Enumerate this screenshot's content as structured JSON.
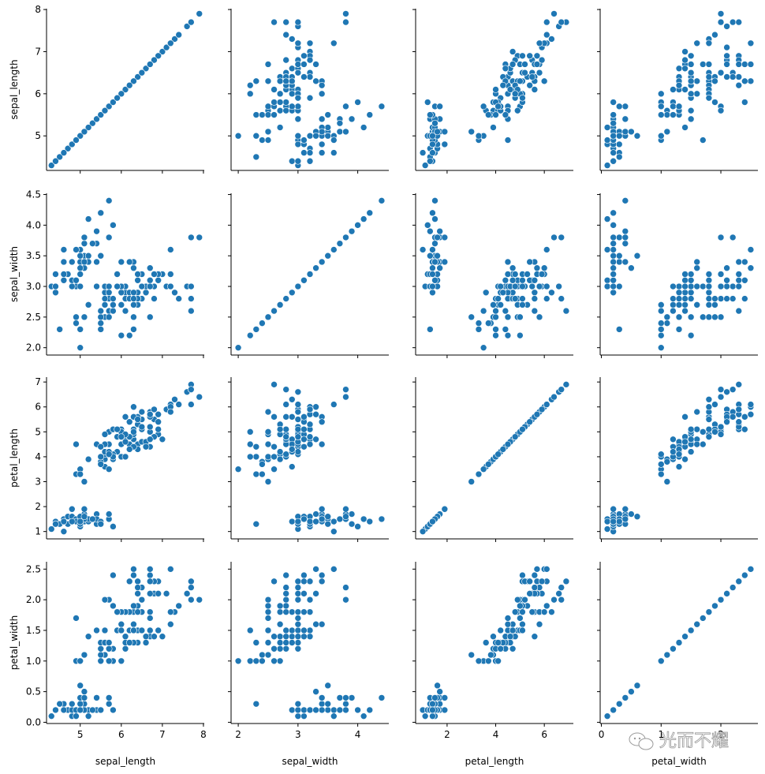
{
  "colors": {
    "marker": "#1f77b4",
    "axis": "#000000",
    "background": "#ffffff"
  },
  "watermark": {
    "text": "光而不耀",
    "icon": "wechat-icon"
  },
  "variables": [
    {
      "name": "sepal_length",
      "label": "sepal_length",
      "lim": [
        4.18,
        8.02
      ],
      "ticks": [
        5,
        6,
        7,
        8
      ],
      "tick_labels": [
        "5",
        "6",
        "7",
        "8"
      ]
    },
    {
      "name": "sepal_width",
      "label": "sepal_width",
      "lim": [
        1.88,
        4.52
      ],
      "ticks": [
        2.0,
        2.5,
        3.0,
        3.5,
        4.0,
        4.5
      ],
      "tick_labels": [
        "2.0",
        "2.5",
        "3.0",
        "3.5",
        "4.0",
        "4.5"
      ]
    },
    {
      "name": "petal_length",
      "label": "petal_length",
      "lim": [
        0.705,
        7.195
      ],
      "ticks": [
        1,
        2,
        3,
        4,
        5,
        6,
        7
      ],
      "tick_labels": [
        "1",
        "2",
        "3",
        "4",
        "5",
        "6",
        "7"
      ]
    },
    {
      "name": "petal_width",
      "label": "petal_width",
      "lim": [
        -0.02,
        2.62
      ],
      "ticks": [
        0.0,
        0.5,
        1.0,
        1.5,
        2.0,
        2.5
      ],
      "tick_labels": [
        "0.0",
        "0.5",
        "1.0",
        "1.5",
        "2.0",
        "2.5"
      ]
    }
  ],
  "x_tick_overrides": {
    "sepal_width": {
      "ticks": [
        2,
        3,
        4
      ],
      "tick_labels": [
        "2",
        "3",
        "4"
      ]
    },
    "petal_length": {
      "ticks": [
        2,
        4,
        6
      ],
      "tick_labels": [
        "2",
        "4",
        "6"
      ]
    },
    "petal_width": {
      "ticks": [
        0,
        1,
        2
      ],
      "tick_labels": [
        "0",
        "1",
        "2"
      ]
    }
  },
  "chart_data": {
    "type": "scatter",
    "title": "",
    "layout": "pairplot",
    "grid": false,
    "columns": [
      "sepal_length",
      "sepal_width",
      "petal_length",
      "petal_width"
    ],
    "rows": [
      [
        5.1,
        3.5,
        1.4,
        0.2
      ],
      [
        4.9,
        3.0,
        1.4,
        0.2
      ],
      [
        4.7,
        3.2,
        1.3,
        0.2
      ],
      [
        4.6,
        3.1,
        1.5,
        0.2
      ],
      [
        5.0,
        3.6,
        1.4,
        0.2
      ],
      [
        5.4,
        3.9,
        1.7,
        0.4
      ],
      [
        4.6,
        3.4,
        1.4,
        0.3
      ],
      [
        5.0,
        3.4,
        1.5,
        0.2
      ],
      [
        4.4,
        2.9,
        1.4,
        0.2
      ],
      [
        4.9,
        3.1,
        1.5,
        0.1
      ],
      [
        5.4,
        3.7,
        1.5,
        0.2
      ],
      [
        4.8,
        3.4,
        1.6,
        0.2
      ],
      [
        4.8,
        3.0,
        1.4,
        0.1
      ],
      [
        4.3,
        3.0,
        1.1,
        0.1
      ],
      [
        5.8,
        4.0,
        1.2,
        0.2
      ],
      [
        5.7,
        4.4,
        1.5,
        0.4
      ],
      [
        5.4,
        3.9,
        1.3,
        0.4
      ],
      [
        5.1,
        3.5,
        1.4,
        0.3
      ],
      [
        5.7,
        3.8,
        1.7,
        0.3
      ],
      [
        5.1,
        3.8,
        1.5,
        0.3
      ],
      [
        5.4,
        3.4,
        1.7,
        0.2
      ],
      [
        5.1,
        3.7,
        1.5,
        0.4
      ],
      [
        4.6,
        3.6,
        1.0,
        0.2
      ],
      [
        5.1,
        3.3,
        1.7,
        0.5
      ],
      [
        4.8,
        3.4,
        1.9,
        0.2
      ],
      [
        5.0,
        3.0,
        1.6,
        0.2
      ],
      [
        5.0,
        3.4,
        1.6,
        0.4
      ],
      [
        5.2,
        3.5,
        1.5,
        0.2
      ],
      [
        5.2,
        3.4,
        1.4,
        0.2
      ],
      [
        4.7,
        3.2,
        1.6,
        0.2
      ],
      [
        4.8,
        3.1,
        1.6,
        0.2
      ],
      [
        5.4,
        3.4,
        1.5,
        0.4
      ],
      [
        5.2,
        4.1,
        1.5,
        0.1
      ],
      [
        5.5,
        4.2,
        1.4,
        0.2
      ],
      [
        4.9,
        3.1,
        1.5,
        0.2
      ],
      [
        5.0,
        3.2,
        1.2,
        0.2
      ],
      [
        5.5,
        3.5,
        1.3,
        0.2
      ],
      [
        4.9,
        3.6,
        1.4,
        0.1
      ],
      [
        4.4,
        3.0,
        1.3,
        0.2
      ],
      [
        5.1,
        3.4,
        1.5,
        0.2
      ],
      [
        5.0,
        3.5,
        1.3,
        0.3
      ],
      [
        4.5,
        2.3,
        1.3,
        0.3
      ],
      [
        4.4,
        3.2,
        1.3,
        0.2
      ],
      [
        5.0,
        3.5,
        1.6,
        0.6
      ],
      [
        5.1,
        3.8,
        1.9,
        0.4
      ],
      [
        4.8,
        3.0,
        1.4,
        0.3
      ],
      [
        5.1,
        3.8,
        1.6,
        0.2
      ],
      [
        4.6,
        3.2,
        1.4,
        0.2
      ],
      [
        5.3,
        3.7,
        1.5,
        0.2
      ],
      [
        5.0,
        3.3,
        1.4,
        0.2
      ],
      [
        7.0,
        3.2,
        4.7,
        1.4
      ],
      [
        6.4,
        3.2,
        4.5,
        1.5
      ],
      [
        6.9,
        3.1,
        4.9,
        1.5
      ],
      [
        5.5,
        2.3,
        4.0,
        1.3
      ],
      [
        6.5,
        2.8,
        4.6,
        1.5
      ],
      [
        5.7,
        2.8,
        4.5,
        1.3
      ],
      [
        6.3,
        3.3,
        4.7,
        1.6
      ],
      [
        4.9,
        2.4,
        3.3,
        1.0
      ],
      [
        6.6,
        2.9,
        4.6,
        1.3
      ],
      [
        5.2,
        2.7,
        3.9,
        1.4
      ],
      [
        5.0,
        2.0,
        3.5,
        1.0
      ],
      [
        5.9,
        3.0,
        4.2,
        1.5
      ],
      [
        6.0,
        2.2,
        4.0,
        1.0
      ],
      [
        6.1,
        2.9,
        4.7,
        1.4
      ],
      [
        5.6,
        2.9,
        3.6,
        1.3
      ],
      [
        6.7,
        3.1,
        4.4,
        1.4
      ],
      [
        5.6,
        3.0,
        4.5,
        1.5
      ],
      [
        5.8,
        2.7,
        4.1,
        1.0
      ],
      [
        6.2,
        2.2,
        4.5,
        1.5
      ],
      [
        5.6,
        2.5,
        3.9,
        1.1
      ],
      [
        5.9,
        3.2,
        4.8,
        1.8
      ],
      [
        6.1,
        2.8,
        4.0,
        1.3
      ],
      [
        6.3,
        2.5,
        4.9,
        1.5
      ],
      [
        6.1,
        2.8,
        4.7,
        1.2
      ],
      [
        6.4,
        2.9,
        4.3,
        1.3
      ],
      [
        6.6,
        3.0,
        4.4,
        1.4
      ],
      [
        6.8,
        2.8,
        4.8,
        1.4
      ],
      [
        6.7,
        3.0,
        5.0,
        1.7
      ],
      [
        6.0,
        2.9,
        4.5,
        1.5
      ],
      [
        5.7,
        2.6,
        3.5,
        1.0
      ],
      [
        5.5,
        2.4,
        3.8,
        1.1
      ],
      [
        5.5,
        2.4,
        3.7,
        1.0
      ],
      [
        5.8,
        2.7,
        3.9,
        1.2
      ],
      [
        6.0,
        2.7,
        5.1,
        1.6
      ],
      [
        5.4,
        3.0,
        4.5,
        1.5
      ],
      [
        6.0,
        3.4,
        4.5,
        1.6
      ],
      [
        6.7,
        3.1,
        4.7,
        1.5
      ],
      [
        6.3,
        2.3,
        4.4,
        1.3
      ],
      [
        5.6,
        3.0,
        4.1,
        1.3
      ],
      [
        5.5,
        2.5,
        4.0,
        1.3
      ],
      [
        5.5,
        2.6,
        4.4,
        1.2
      ],
      [
        6.1,
        3.0,
        4.6,
        1.4
      ],
      [
        5.8,
        2.6,
        4.0,
        1.2
      ],
      [
        5.0,
        2.3,
        3.3,
        1.0
      ],
      [
        5.6,
        2.7,
        4.2,
        1.3
      ],
      [
        5.7,
        3.0,
        4.2,
        1.2
      ],
      [
        5.7,
        2.9,
        4.2,
        1.3
      ],
      [
        6.2,
        2.9,
        4.3,
        1.3
      ],
      [
        5.1,
        2.5,
        3.0,
        1.1
      ],
      [
        5.7,
        2.8,
        4.1,
        1.3
      ],
      [
        6.3,
        3.3,
        6.0,
        2.5
      ],
      [
        5.8,
        2.7,
        5.1,
        1.9
      ],
      [
        7.1,
        3.0,
        5.9,
        2.1
      ],
      [
        6.3,
        2.9,
        5.6,
        1.8
      ],
      [
        6.5,
        3.0,
        5.8,
        2.2
      ],
      [
        7.6,
        3.0,
        6.6,
        2.1
      ],
      [
        4.9,
        2.5,
        4.5,
        1.7
      ],
      [
        7.3,
        2.9,
        6.3,
        1.8
      ],
      [
        6.7,
        2.5,
        5.8,
        1.8
      ],
      [
        7.2,
        3.6,
        6.1,
        2.5
      ],
      [
        6.5,
        3.2,
        5.1,
        2.0
      ],
      [
        6.4,
        2.7,
        5.3,
        1.9
      ],
      [
        6.8,
        3.0,
        5.5,
        2.1
      ],
      [
        5.7,
        2.5,
        5.0,
        2.0
      ],
      [
        5.8,
        2.8,
        5.1,
        2.4
      ],
      [
        6.4,
        3.2,
        5.3,
        2.3
      ],
      [
        6.5,
        3.0,
        5.5,
        1.8
      ],
      [
        7.7,
        3.8,
        6.7,
        2.2
      ],
      [
        7.7,
        2.6,
        6.9,
        2.3
      ],
      [
        6.0,
        2.2,
        5.0,
        1.5
      ],
      [
        6.9,
        3.2,
        5.7,
        2.3
      ],
      [
        5.6,
        2.8,
        4.9,
        2.0
      ],
      [
        7.7,
        2.8,
        6.7,
        2.0
      ],
      [
        6.3,
        2.7,
        4.9,
        1.8
      ],
      [
        6.7,
        3.3,
        5.7,
        2.1
      ],
      [
        7.2,
        3.2,
        6.0,
        1.8
      ],
      [
        6.2,
        2.8,
        4.8,
        1.8
      ],
      [
        6.1,
        3.0,
        4.9,
        1.8
      ],
      [
        6.4,
        2.8,
        5.6,
        2.1
      ],
      [
        7.2,
        3.0,
        5.8,
        1.6
      ],
      [
        7.4,
        2.8,
        6.1,
        1.9
      ],
      [
        7.9,
        3.8,
        6.4,
        2.0
      ],
      [
        6.4,
        2.8,
        5.6,
        2.2
      ],
      [
        6.3,
        2.8,
        5.1,
        1.5
      ],
      [
        6.1,
        2.6,
        5.6,
        1.4
      ],
      [
        7.7,
        3.0,
        6.1,
        2.3
      ],
      [
        6.3,
        3.4,
        5.6,
        2.4
      ],
      [
        6.4,
        3.1,
        5.5,
        1.8
      ],
      [
        6.0,
        3.0,
        4.8,
        1.8
      ],
      [
        6.9,
        3.1,
        5.4,
        2.1
      ],
      [
        6.7,
        3.1,
        5.6,
        2.4
      ],
      [
        6.9,
        3.1,
        5.1,
        2.3
      ],
      [
        5.8,
        2.7,
        5.1,
        1.9
      ],
      [
        6.8,
        3.2,
        5.9,
        2.3
      ],
      [
        6.7,
        3.3,
        5.7,
        2.5
      ],
      [
        6.7,
        3.0,
        5.2,
        2.3
      ],
      [
        6.3,
        2.5,
        5.0,
        1.9
      ],
      [
        6.5,
        3.0,
        5.2,
        2.0
      ],
      [
        6.2,
        3.4,
        5.4,
        2.3
      ],
      [
        5.9,
        3.0,
        5.1,
        1.8
      ]
    ]
  }
}
